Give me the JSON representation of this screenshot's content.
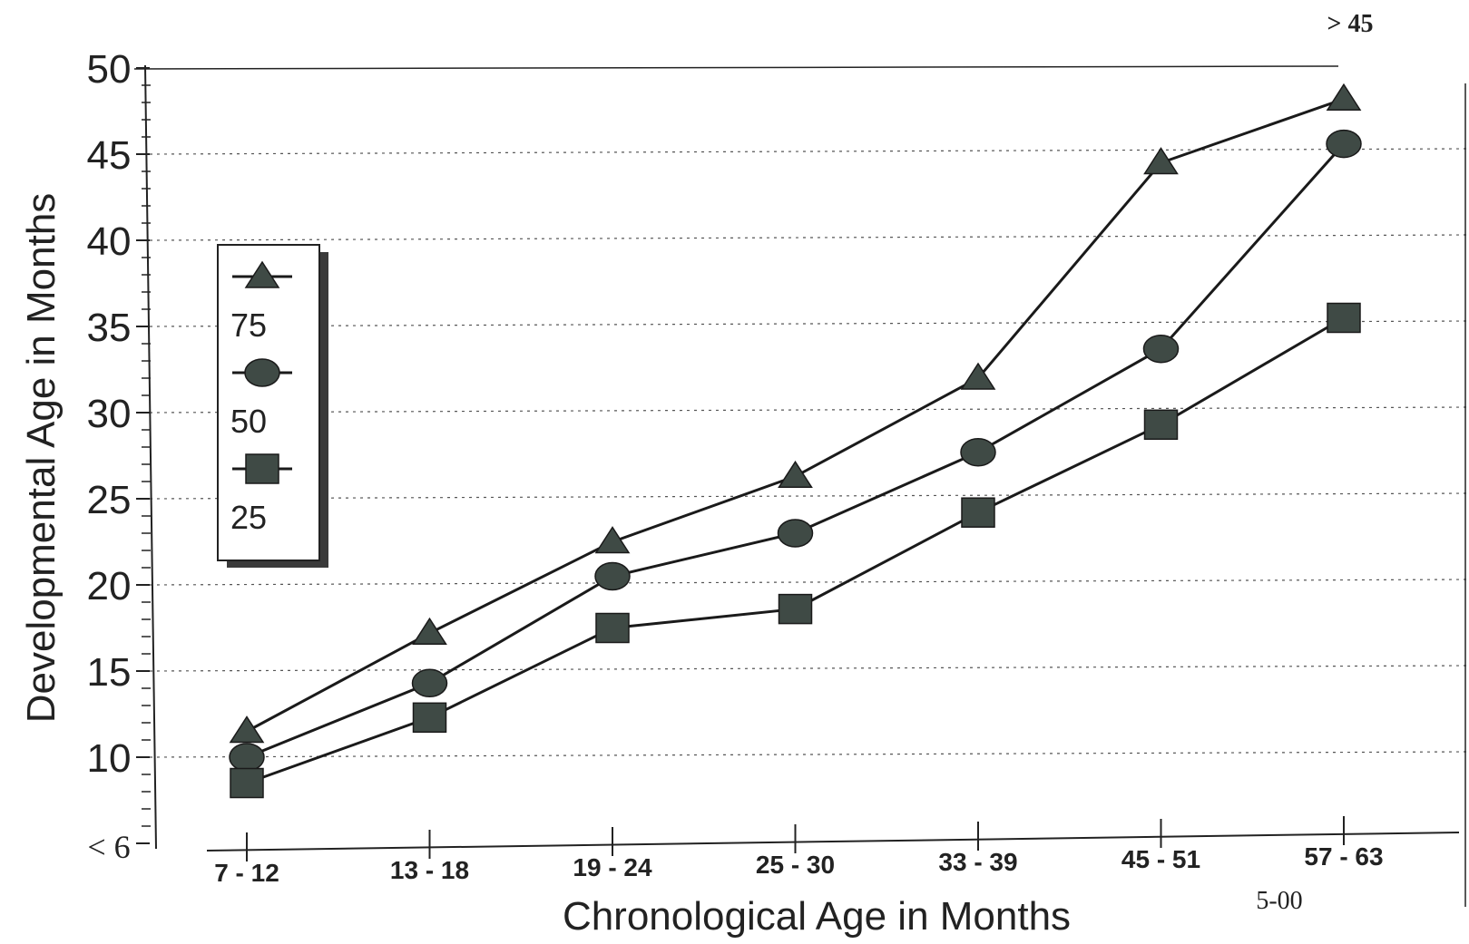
{
  "chart_data": {
    "type": "line",
    "title": "",
    "xlabel": "Chronological Age in Months",
    "ylabel": "Developmental Age in Months",
    "categories": [
      "7 - 12",
      "13 - 18",
      "19 - 24",
      "25 - 30",
      "33 - 39",
      "45 - 51",
      "57 - 63"
    ],
    "y_tick_labels": [
      "< 6",
      "10",
      "15",
      "20",
      "25",
      "30",
      "35",
      "40",
      "45",
      "50"
    ],
    "ylim": [
      5,
      50
    ],
    "grid": "horizontal dotted",
    "legend_position": "left",
    "top_annotation": "> 45",
    "footnote": "5-00",
    "series": [
      {
        "name": "75",
        "marker": "triangle",
        "values": [
          11.5,
          17.2,
          22.5,
          26.3,
          32.0,
          44.5,
          48.2
        ]
      },
      {
        "name": "50",
        "marker": "circle",
        "values": [
          10.0,
          14.3,
          20.5,
          23.0,
          27.7,
          33.7,
          45.6
        ]
      },
      {
        "name": "25",
        "marker": "square",
        "values": [
          8.5,
          12.3,
          17.5,
          18.6,
          24.2,
          29.3,
          35.5
        ]
      }
    ],
    "colors": {
      "line": "#1a1a1a",
      "marker": "#3f4a45",
      "grid": "#555555"
    }
  }
}
